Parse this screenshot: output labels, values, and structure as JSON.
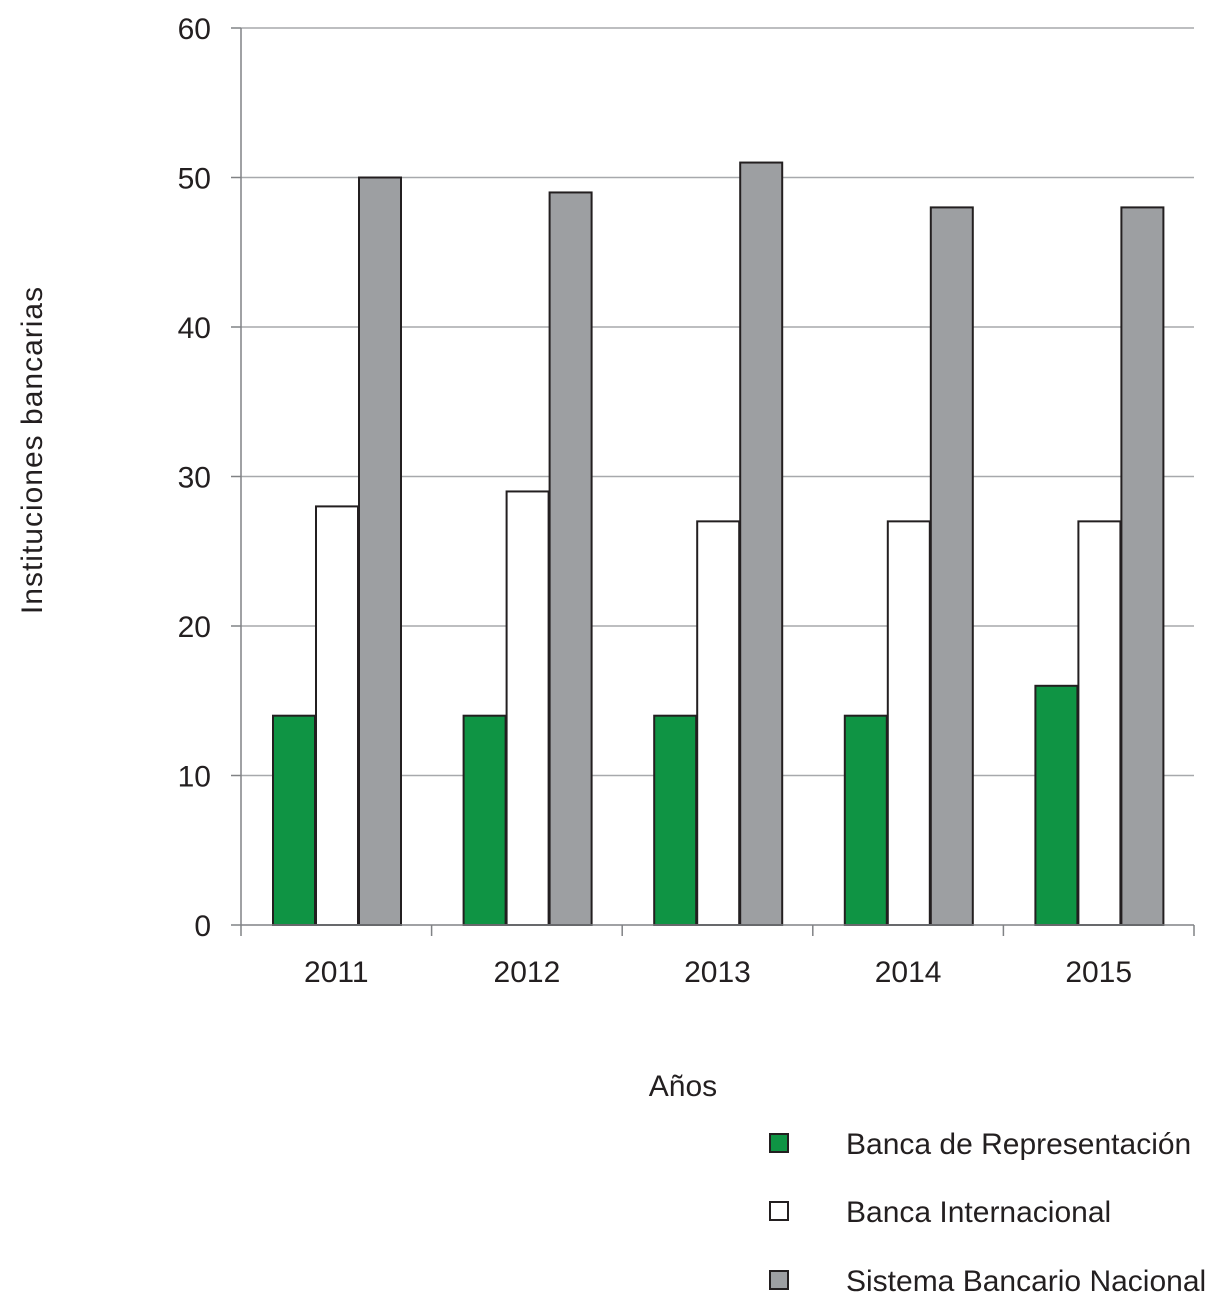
{
  "chart_data": {
    "type": "bar",
    "title": "",
    "xlabel": "Años",
    "ylabel": "Instituciones  bancarias",
    "ylim": [
      0,
      60
    ],
    "yticks": [
      0,
      10,
      20,
      30,
      40,
      50,
      60
    ],
    "grid": true,
    "legend_position": "bottom-right",
    "categories": [
      "2011",
      "2012",
      "2013",
      "2014",
      "2015"
    ],
    "series": [
      {
        "name": "Banca de Representación",
        "color": "#0f9444",
        "values": [
          14,
          14,
          14,
          14,
          16
        ]
      },
      {
        "name": "Banca Internacional",
        "color": "#ffffff",
        "values": [
          28,
          29,
          27,
          27,
          27
        ]
      },
      {
        "name": "Sistema Bancario Nacional",
        "color": "#9d9fa2",
        "values": [
          50,
          49,
          51,
          48,
          48
        ]
      }
    ]
  }
}
